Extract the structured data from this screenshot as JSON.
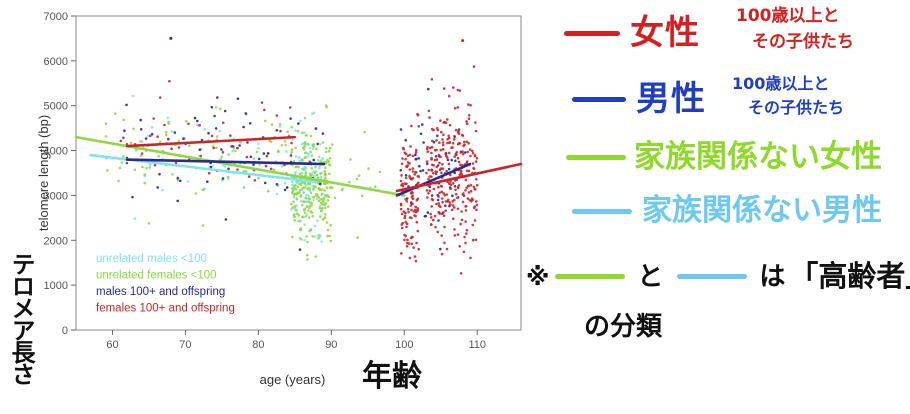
{
  "chart_data": {
    "type": "scatter",
    "xlabel": "age (years)",
    "ylabel": "telomere length (bp)",
    "xlim": [
      55,
      116
    ],
    "ylim": [
      0,
      7000
    ],
    "xticks": [
      60,
      70,
      80,
      90,
      100,
      110
    ],
    "yticks": [
      0,
      1000,
      2000,
      3000,
      4000,
      5000,
      6000,
      7000
    ],
    "grid": false,
    "legend_position": "bottom-left",
    "series": [
      {
        "name": "unrelated males <100",
        "color": "#7fe3f0",
        "trend": [
          [
            57,
            3900
          ],
          [
            88,
            3300
          ]
        ],
        "clusters": [
          {
            "x": [
              62,
              85
            ],
            "y_mean": 3800,
            "y_sd": 500,
            "n": 40
          },
          {
            "x": [
              84.5,
              89
            ],
            "y_mean": 3300,
            "y_sd": 650,
            "n": 120
          }
        ]
      },
      {
        "name": "unrelated females <100",
        "color": "#8fd840",
        "trend": [
          [
            55,
            4300
          ],
          [
            100,
            3000
          ]
        ],
        "clusters": [
          {
            "x": [
              59,
              85
            ],
            "y_mean": 3900,
            "y_sd": 550,
            "n": 90
          },
          {
            "x": [
              84.5,
              90
            ],
            "y_mean": 3200,
            "y_sd": 650,
            "n": 220
          },
          {
            "x": [
              89,
              97
            ],
            "y_mean": 3300,
            "y_sd": 500,
            "n": 20
          }
        ]
      },
      {
        "name": "males  100+ and offspring",
        "color": "#2a2a8f",
        "trend": [
          [
            62,
            3800
          ],
          [
            89,
            3700
          ],
          [
            99,
            3000
          ],
          [
            109,
            3700
          ]
        ],
        "clusters": [
          {
            "x": [
              61,
              89
            ],
            "y_mean": 3800,
            "y_sd": 600,
            "n": 70
          },
          {
            "x": [
              99.5,
              109
            ],
            "y_mean": 3600,
            "y_sd": 700,
            "n": 60
          }
        ]
      },
      {
        "name": "females 100+ and offspring",
        "color": "#c8262c",
        "trend": [
          [
            62,
            4100
          ],
          [
            85,
            4300
          ],
          [
            99,
            3100
          ],
          [
            116,
            3700
          ]
        ],
        "clusters": [
          {
            "x": [
              61,
              85
            ],
            "y_mean": 4150,
            "y_sd": 550,
            "n": 50
          },
          {
            "x": [
              99.5,
              102
            ],
            "y_mean": 3000,
            "y_sd": 700,
            "n": 110
          },
          {
            "x": [
              103,
              110
            ],
            "y_mean": 3400,
            "y_sd": 800,
            "n": 270
          }
        ]
      }
    ],
    "outliers": [
      {
        "series": 2,
        "x": 68,
        "y": 6500
      },
      {
        "series": 3,
        "x": 108,
        "y": 6450
      }
    ]
  },
  "annotations": {
    "x_axis_note": "年齢",
    "y_axis_note": "テロメア長さ",
    "legend_notes": [
      {
        "text": "女性",
        "color": "#d42020",
        "detail_lines": [
          "100歳以上と",
          "その子供たち"
        ]
      },
      {
        "text": "男性",
        "color": "#1f3fc0",
        "detail_lines": [
          "100歳以上と",
          "その子供たち"
        ]
      },
      {
        "text": "家族関係ない女性",
        "color": "#8fd82c"
      },
      {
        "text": "家族関係ない男性",
        "color": "#6ec8f0"
      }
    ],
    "footnote": {
      "prefix": "※",
      "and": "と",
      "is": "は",
      "quoted": "「高齢者」",
      "suffix": "の分類",
      "colors": [
        "#8fd82c",
        "#6ec8f0"
      ]
    }
  }
}
